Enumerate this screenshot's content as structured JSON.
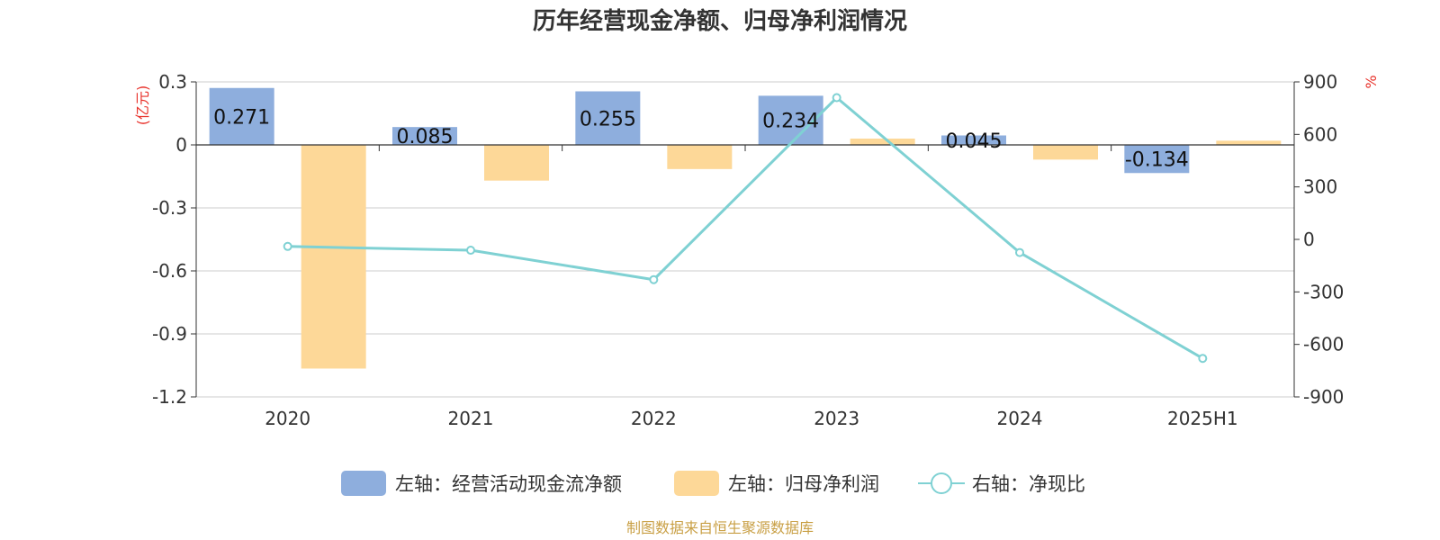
{
  "chart_data": {
    "type": "bar",
    "title": "历年经营现金净额、归母净利润情况",
    "categories": [
      "2020",
      "2021",
      "2022",
      "2023",
      "2024",
      "2025H1"
    ],
    "left_axis": {
      "unit": "(亿元)",
      "ylim": [
        -1.2,
        0.3
      ],
      "ticks": [
        "0.3",
        "0",
        "-0.3",
        "-0.6",
        "-0.9",
        "-1.2"
      ]
    },
    "right_axis": {
      "unit": "%",
      "ylim": [
        -900,
        900
      ],
      "ticks": [
        "900",
        "600",
        "300",
        "0",
        "-300",
        "-600",
        "-900"
      ]
    },
    "series": [
      {
        "name": "左轴：经营活动现金流净额",
        "type": "bar",
        "axis": "left",
        "color": "#8eaedd",
        "values": [
          0.271,
          0.085,
          0.255,
          0.234,
          0.045,
          -0.134
        ],
        "labels": [
          "0.271",
          "0.085",
          "0.255",
          "0.234",
          "0.045",
          "-0.134"
        ]
      },
      {
        "name": "左轴：归母净利润",
        "type": "bar",
        "axis": "left",
        "color": "#fdd898",
        "values": [
          -1.065,
          -0.17,
          -0.115,
          0.03,
          -0.07,
          0.02
        ]
      },
      {
        "name": "右轴：净现比",
        "type": "line",
        "axis": "right",
        "color": "#7fd1d3",
        "values": [
          -40,
          -62,
          -230,
          810,
          -75,
          -680
        ]
      }
    ],
    "grid": true,
    "legend_position": "bottom"
  },
  "source_text": "制图数据来自恒生聚源数据库"
}
